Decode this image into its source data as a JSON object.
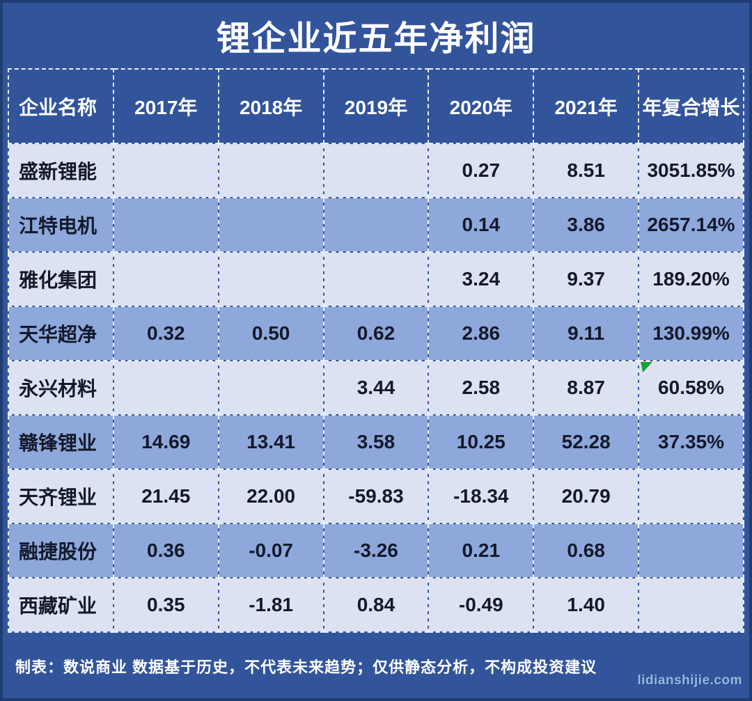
{
  "title": "锂企业近五年净利润",
  "chart_data": {
    "type": "table",
    "title": "锂企业近五年净利润",
    "columns": [
      "企业名称",
      "2017年",
      "2018年",
      "2019年",
      "2020年",
      "2021年",
      "年复合增长"
    ],
    "rows": [
      [
        "盛新锂能",
        "",
        "",
        "",
        "0.27",
        "8.51",
        "3051.85%"
      ],
      [
        "江特电机",
        "",
        "",
        "",
        "0.14",
        "3.86",
        "2657.14%"
      ],
      [
        "雅化集团",
        "",
        "",
        "",
        "3.24",
        "9.37",
        "189.20%"
      ],
      [
        "天华超净",
        "0.32",
        "0.50",
        "0.62",
        "2.86",
        "9.11",
        "130.99%"
      ],
      [
        "永兴材料",
        "",
        "",
        "3.44",
        "2.58",
        "8.87",
        "60.58%"
      ],
      [
        "赣锋锂业",
        "14.69",
        "13.41",
        "3.58",
        "10.25",
        "52.28",
        "37.35%"
      ],
      [
        "天齐锂业",
        "21.45",
        "22.00",
        "-59.83",
        "-18.34",
        "20.79",
        ""
      ],
      [
        "融捷股份",
        "0.36",
        "-0.07",
        "-3.26",
        "0.21",
        "0.68",
        ""
      ],
      [
        "西藏矿业",
        "0.35",
        "-1.81",
        "0.84",
        "-0.49",
        "1.40",
        ""
      ]
    ],
    "marker": {
      "row": 4,
      "col": 6,
      "shape": "green-corner-triangle",
      "color": "#1E9E38"
    },
    "layout": {
      "row_striping": [
        "light",
        "blue"
      ],
      "grid": "white-dashed",
      "legend": "none"
    }
  },
  "footer": {
    "note": "制表：数说商业 数据基于历史，不代表未来趋势；仅供静态分析，不构成投资建议",
    "watermark": "lidianshijie.com"
  },
  "colors": {
    "background": "#32549B",
    "outer_border": "#1F3C73",
    "row_light": "#DCE2F2",
    "row_blue": "#8EA8DB",
    "cell_border": "#E9EFFA",
    "text_dark": "#13192A",
    "text_light": "#FFFFFF",
    "marker_green": "#1E9E38",
    "watermark_blue": "#9CC3E8"
  }
}
